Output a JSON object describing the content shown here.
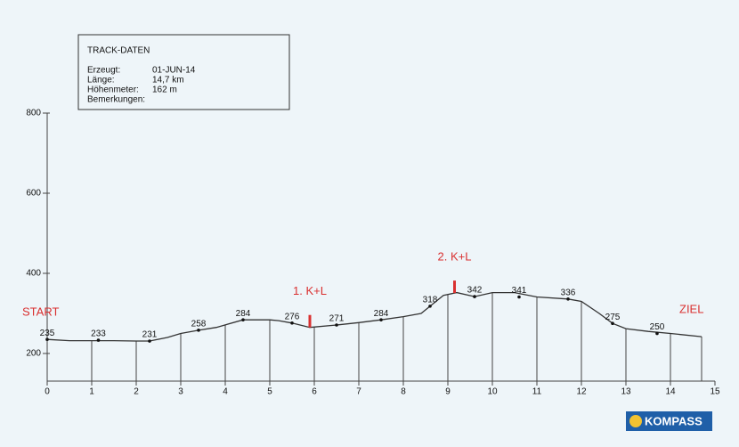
{
  "chart_data": {
    "type": "profile",
    "info": {
      "title": "TRACK-DATEN",
      "rows": [
        [
          "Erzeugt:",
          "01-JUN-14"
        ],
        [
          "Länge:",
          "14,7 km"
        ],
        [
          "Höhenmeter:",
          "162 m"
        ],
        [
          "Bemerkungen:",
          ""
        ]
      ]
    },
    "xlim": [
      0,
      15
    ],
    "xticks": [
      0,
      1,
      2,
      3,
      4,
      5,
      6,
      7,
      8,
      9,
      10,
      11,
      12,
      13,
      14,
      15
    ],
    "ylim": [
      131,
      800
    ],
    "yticks": [
      200,
      400,
      600,
      800
    ],
    "profile": {
      "color": "#333333",
      "x": [
        0,
        0.5,
        1,
        1.5,
        2,
        2.3,
        2.7,
        3,
        3.4,
        3.8,
        4.4,
        5,
        5.2,
        5.5,
        5.9,
        6.5,
        7,
        7.5,
        8,
        8.4,
        8.6,
        8.9,
        9.2,
        9.6,
        10,
        10.5,
        11,
        11.7,
        12,
        12.4,
        12.7,
        13,
        13.5,
        14,
        14.7
      ],
      "values": [
        235,
        232,
        232,
        232,
        231,
        231,
        240,
        250,
        258,
        265,
        284,
        284,
        282,
        276,
        265,
        271,
        277,
        284,
        292,
        300,
        318,
        345,
        352,
        342,
        352,
        352,
        341,
        336,
        330,
        300,
        275,
        262,
        255,
        250,
        242
      ]
    },
    "points": {
      "x": [
        0,
        1.15,
        2.3,
        3.4,
        4.4,
        5.5,
        6.5,
        7.5,
        8.6,
        9.6,
        10.6,
        11.7,
        12.7,
        13.7
      ],
      "values": [
        235,
        233,
        231,
        258,
        284,
        276,
        271,
        284,
        318,
        342,
        341,
        336,
        275,
        250
      ]
    },
    "markers": [
      {
        "label": "1. K+L",
        "x": 5.9,
        "color": "#d93030"
      },
      {
        "label": "2. K+L",
        "x": 9.15,
        "color": "#d93030"
      }
    ],
    "start_label": "START",
    "end_label": "ZIEL",
    "logo": "KOMPASS"
  }
}
